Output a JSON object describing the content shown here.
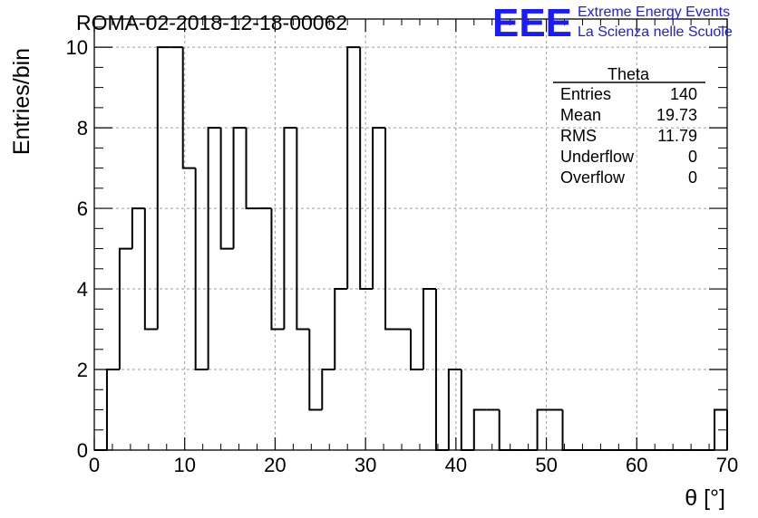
{
  "title": "ROMA-02-2018-12-18-00062",
  "logo": {
    "mark": "EEE",
    "line1": "Extreme Energy Events",
    "line2": "La Scienza nelle Scuole",
    "color": "#1a1aff"
  },
  "stats_box": {
    "title": "Theta",
    "rows": [
      {
        "label": "Entries",
        "value": "140"
      },
      {
        "label": "Mean",
        "value": "19.73"
      },
      {
        "label": "RMS",
        "value": "11.79"
      },
      {
        "label": "Underflow",
        "value": "0"
      },
      {
        "label": "Overflow",
        "value": "0"
      }
    ]
  },
  "chart_data": {
    "type": "bar",
    "style": "step-histogram",
    "title": "ROMA-02-2018-12-18-00062",
    "xlabel": "θ [°]",
    "ylabel": "Entries/bin",
    "xlim": [
      0,
      70
    ],
    "ylim": [
      0,
      10.7
    ],
    "grid": true,
    "bin_width": 1.4,
    "x_ticks": [
      "0",
      "10",
      "20",
      "30",
      "40",
      "50",
      "60",
      "70"
    ],
    "y_ticks": [
      "0",
      "2",
      "4",
      "6",
      "8",
      "10"
    ],
    "bin_low_edges": [
      0,
      1.4,
      2.8,
      4.2,
      5.6,
      7.0,
      8.4,
      9.8,
      11.2,
      12.6,
      14.0,
      15.4,
      16.8,
      18.2,
      19.6,
      21.0,
      22.4,
      23.8,
      25.2,
      26.6,
      28.0,
      29.4,
      30.8,
      32.2,
      33.6,
      35.0,
      36.4,
      37.8,
      39.2,
      40.6,
      42.0,
      43.4,
      44.8,
      46.2,
      47.6,
      49.0,
      50.4,
      51.8,
      53.2,
      54.6,
      56.0,
      57.4,
      58.8,
      60.2,
      61.6,
      63.0,
      64.4,
      65.8,
      67.2,
      68.6
    ],
    "values": [
      0,
      2,
      5,
      6,
      3,
      10,
      10,
      7,
      2,
      8,
      5,
      8,
      6,
      6,
      3,
      8,
      3,
      1,
      2,
      4,
      10,
      4,
      8,
      3,
      3,
      2,
      4,
      0,
      2,
      0,
      1,
      1,
      0,
      0,
      0,
      1,
      1,
      0,
      0,
      0,
      0,
      0,
      0,
      0,
      0,
      0,
      0,
      0,
      0,
      1
    ],
    "line_color": "#000000",
    "grid_color": "#9e9e9e"
  }
}
